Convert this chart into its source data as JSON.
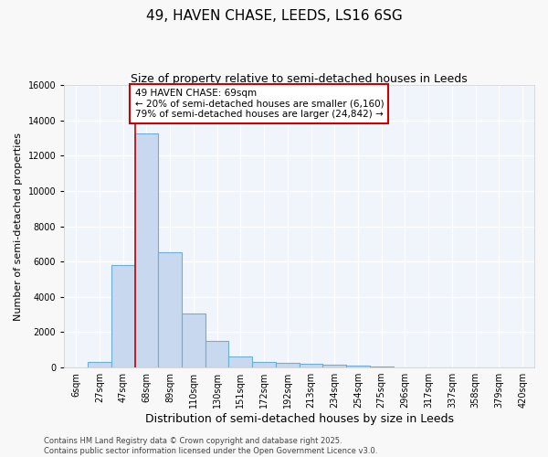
{
  "title": "49, HAVEN CHASE, LEEDS, LS16 6SG",
  "subtitle": "Size of property relative to semi-detached houses in Leeds",
  "xlabel": "Distribution of semi-detached houses by size in Leeds",
  "ylabel": "Number of semi-detached properties",
  "categories": [
    "6sqm",
    "27sqm",
    "47sqm",
    "68sqm",
    "89sqm",
    "110sqm",
    "130sqm",
    "151sqm",
    "172sqm",
    "192sqm",
    "213sqm",
    "234sqm",
    "254sqm",
    "275sqm",
    "296sqm",
    "317sqm",
    "337sqm",
    "358sqm",
    "379sqm",
    "420sqm"
  ],
  "values": [
    0,
    300,
    5800,
    13250,
    6550,
    3050,
    1500,
    600,
    300,
    250,
    200,
    150,
    100,
    50,
    0,
    0,
    0,
    0,
    0,
    0
  ],
  "bar_color": "#c8d9ef",
  "bar_edge_color": "#6baed6",
  "plot_bg_color": "#f0f4fb",
  "fig_bg_color": "#f8f8f8",
  "grid_color": "#ffffff",
  "annotation_text": "49 HAVEN CHASE: 69sqm\n← 20% of semi-detached houses are smaller (6,160)\n79% of semi-detached houses are larger (24,842) →",
  "annotation_box_facecolor": "#ffffff",
  "annotation_box_edgecolor": "#cc0000",
  "vline_color": "#cc0000",
  "vline_x_index": 3,
  "ylim": [
    0,
    16000
  ],
  "yticks": [
    0,
    2000,
    4000,
    6000,
    8000,
    10000,
    12000,
    14000,
    16000
  ],
  "title_fontsize": 11,
  "subtitle_fontsize": 9,
  "xlabel_fontsize": 9,
  "ylabel_fontsize": 8,
  "tick_fontsize": 7,
  "annotation_fontsize": 7.5,
  "footer_fontsize": 6,
  "footer_text": "Contains HM Land Registry data © Crown copyright and database right 2025.\nContains public sector information licensed under the Open Government Licence v3.0."
}
